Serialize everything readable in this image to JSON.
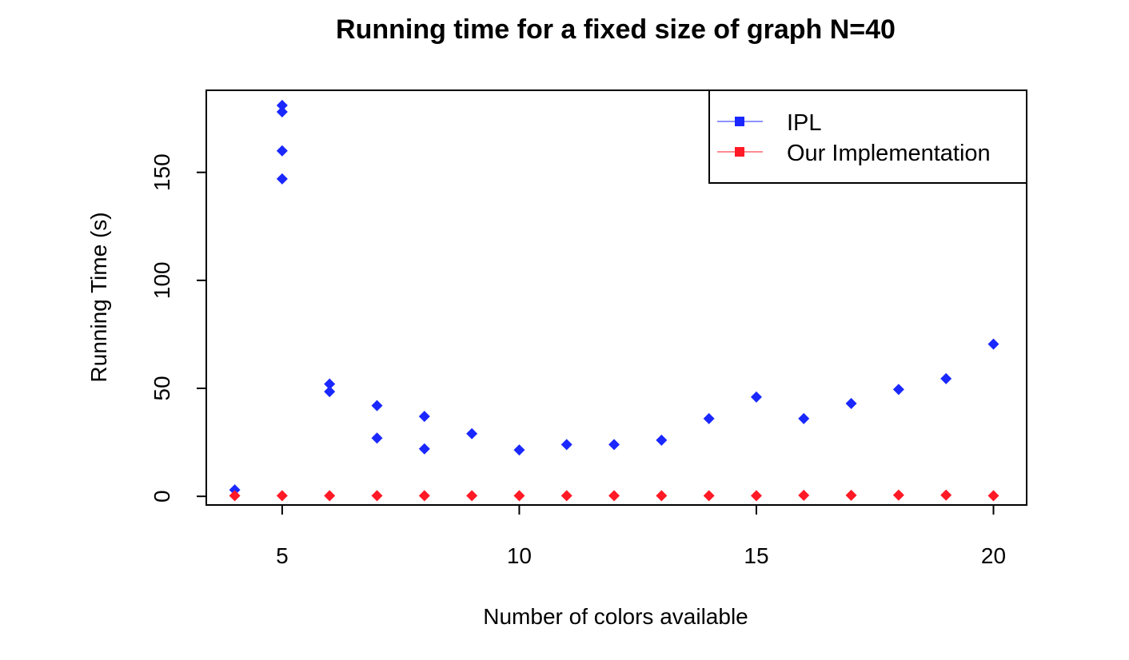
{
  "chart_data": {
    "type": "scatter",
    "title": "Running time for a fixed size of graph N=40",
    "xlabel": "Number of colors available",
    "ylabel": "Running Time (s)",
    "xlim": [
      3.4,
      20.7
    ],
    "ylim": [
      -4,
      188
    ],
    "xticks": [
      5,
      10,
      15,
      20
    ],
    "yticks": [
      0,
      50,
      100,
      150
    ],
    "grid": false,
    "legend_position": "top-right",
    "series": [
      {
        "name": "IPL",
        "color": "#1a28ff",
        "marker": "diamond",
        "points": [
          [
            4,
            3
          ],
          [
            5,
            181
          ],
          [
            5,
            178
          ],
          [
            5,
            160
          ],
          [
            5,
            147
          ],
          [
            6,
            52
          ],
          [
            6,
            48.5
          ],
          [
            7,
            42
          ],
          [
            7,
            27
          ],
          [
            8,
            37
          ],
          [
            8,
            22
          ],
          [
            9,
            29
          ],
          [
            10,
            21.5
          ],
          [
            11,
            24
          ],
          [
            12,
            24
          ],
          [
            13,
            26
          ],
          [
            14,
            36
          ],
          [
            15,
            46
          ],
          [
            16,
            36
          ],
          [
            17,
            43
          ],
          [
            18,
            49.5
          ],
          [
            19,
            54.5
          ],
          [
            20,
            70.5
          ]
        ]
      },
      {
        "name": "Our Implementation",
        "color": "#ff1a26",
        "marker": "diamond",
        "points": [
          [
            4,
            0.3
          ],
          [
            5,
            0.3
          ],
          [
            6,
            0.3
          ],
          [
            7,
            0.3
          ],
          [
            8,
            0.3
          ],
          [
            9,
            0.3
          ],
          [
            10,
            0.3
          ],
          [
            11,
            0.3
          ],
          [
            12,
            0.3
          ],
          [
            13,
            0.3
          ],
          [
            14,
            0.3
          ],
          [
            15,
            0.3
          ],
          [
            16,
            0.5
          ],
          [
            17,
            0.5
          ],
          [
            18,
            0.6
          ],
          [
            19,
            0.6
          ],
          [
            20,
            0.3
          ]
        ]
      }
    ]
  }
}
